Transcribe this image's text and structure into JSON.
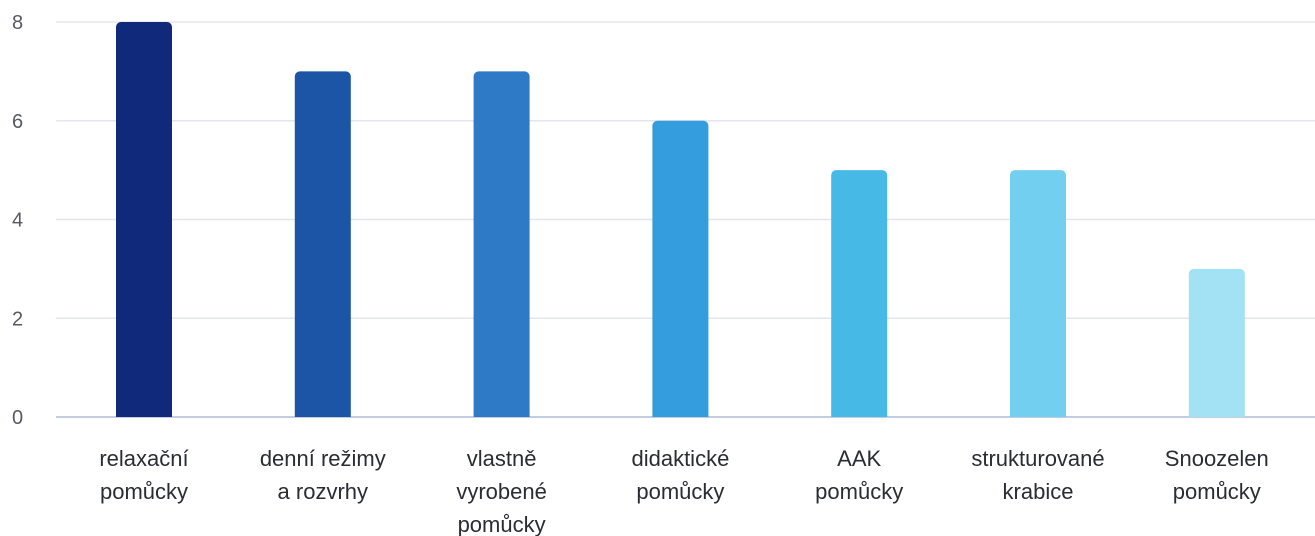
{
  "chart_data": {
    "type": "bar",
    "title": "",
    "xlabel": "",
    "ylabel": "",
    "categories": [
      [
        "relaxační",
        "pomůcky"
      ],
      [
        "denní režimy",
        "a rozvrhy"
      ],
      [
        "vlastně",
        "vyrobené",
        "pomůcky"
      ],
      [
        "didaktické",
        "pomůcky"
      ],
      [
        "AAK",
        "pomůcky"
      ],
      [
        "strukturované",
        "krabice"
      ],
      [
        "Snoozelen",
        "pomůcky"
      ]
    ],
    "values": [
      8,
      7,
      7,
      6,
      5,
      5,
      3
    ],
    "colors": [
      "#10297a",
      "#1c55a5",
      "#2e7ac6",
      "#349ddd",
      "#47b9e6",
      "#72cff0",
      "#a3e1f4"
    ],
    "ylim": [
      0,
      8
    ],
    "yticks": [
      0,
      2,
      4,
      6,
      8
    ],
    "grid": true,
    "legend": "none"
  }
}
